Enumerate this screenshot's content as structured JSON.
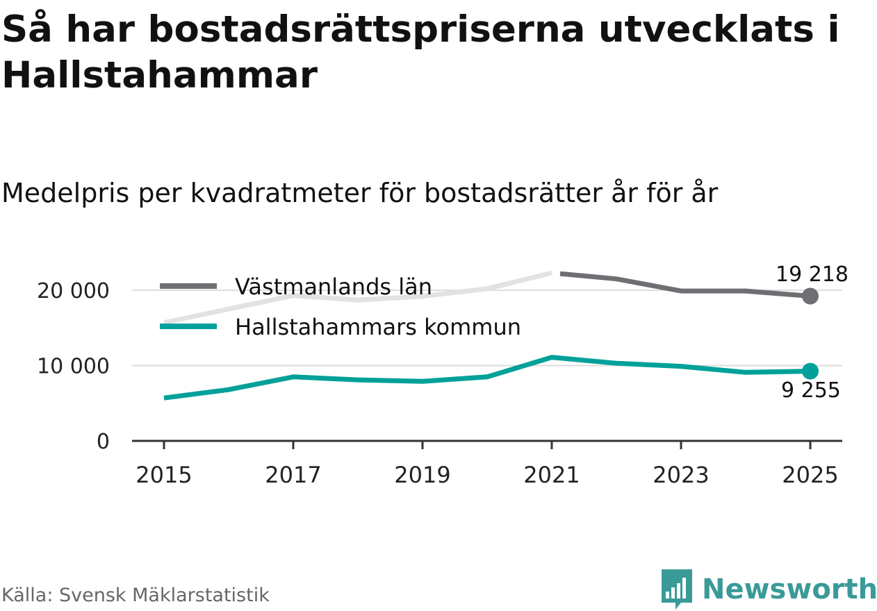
{
  "title": "Så har bostadsrättspriserna utvecklats i Hallstahammar",
  "subtitle": "Medelpris per kvadratmeter för bostadsrätter år för år",
  "source": "Källa: Svensk Mäklarstatistik",
  "brand": {
    "name": "Newsworthy",
    "logo_icon": "bar-chart-speech-icon"
  },
  "colors": {
    "vastmanland": "#6f6e73",
    "vastmanland_faded": "#e2e2e2",
    "hallstahammar": "#00a19a",
    "grid": "#dddddd",
    "axis": "#333333",
    "tick_text": "#222222",
    "brand": "#3a9a98"
  },
  "chart_data": {
    "type": "line",
    "x": [
      2015,
      2016,
      2017,
      2018,
      2019,
      2020,
      2021,
      2022,
      2023,
      2024,
      2025
    ],
    "series": [
      {
        "name": "Västmanlands län",
        "values": [
          15700,
          17500,
          19300,
          18700,
          19200,
          20200,
          22300,
          21500,
          19900,
          19900,
          19218
        ],
        "highlight_from": 2021,
        "end_label": "19 218"
      },
      {
        "name": "Hallstahammars kommun",
        "values": [
          5700,
          6800,
          8500,
          8100,
          7900,
          8500,
          11100,
          10300,
          9900,
          9100,
          9255
        ],
        "end_label": "9 255"
      }
    ],
    "x_ticks": [
      "2015",
      "2017",
      "2019",
      "2021",
      "2023",
      "2025"
    ],
    "y_ticks": [
      {
        "value": 0,
        "label": "0"
      },
      {
        "value": 10000,
        "label": "10 000"
      },
      {
        "value": 20000,
        "label": "20 000"
      }
    ],
    "ylim": [
      0,
      25500
    ],
    "xlim": [
      2015,
      2025
    ],
    "xlabel": "",
    "ylabel": "",
    "legend_position": "top-left",
    "grid": true
  }
}
